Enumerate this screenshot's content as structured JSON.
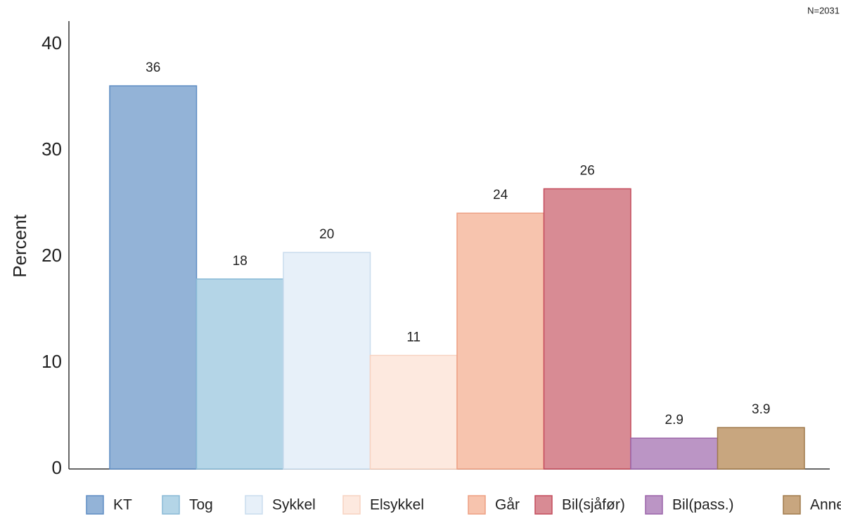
{
  "chart_data": {
    "type": "bar",
    "annotation": "N=2031",
    "y_label": "Percent",
    "categories": [
      "KT",
      "Tog",
      "Sykkel",
      "Elsykkel",
      "Går",
      "Bil(sjåfør)",
      "Bil(pass.)",
      "Annet"
    ],
    "values": [
      36.1,
      17.9,
      20.4,
      10.7,
      24.1,
      26.4,
      2.9,
      3.9
    ],
    "value_labels": [
      "36",
      "18",
      "20",
      "11",
      "24",
      "26",
      "2.9",
      "3.9"
    ],
    "colors": [
      "#93b3d7",
      "#b4d5e7",
      "#e7f0f9",
      "#fde9df",
      "#f7c4ae",
      "#d88b94",
      "#bb95c5",
      "#c8a67f"
    ],
    "edge_colors": [
      "#5d8cc3",
      "#88b9d6",
      "#c9dcee",
      "#f7d2c0",
      "#ee9f82",
      "#c44b5b",
      "#9a62a8",
      "#a07a4c"
    ],
    "ylim": [
      0,
      42
    ],
    "yticks": [
      0,
      10,
      20,
      30,
      40
    ],
    "grid": false,
    "legend": "bottom"
  }
}
